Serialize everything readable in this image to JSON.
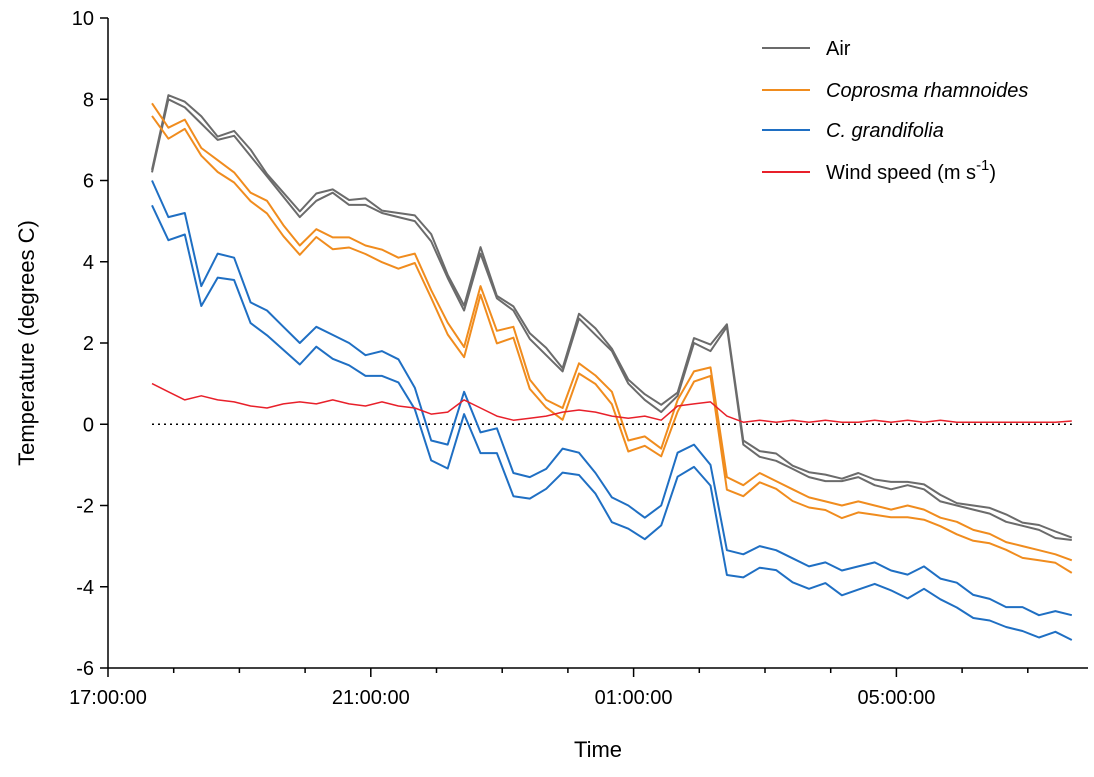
{
  "chart_data": {
    "type": "line",
    "xlabel": "Time",
    "ylabel": "Temperature (degrees C)",
    "ylim": [
      -6,
      10
    ],
    "xlim": [
      "17:00:00",
      "08:00:00"
    ],
    "yticks": [
      "-6",
      "-4",
      "-2",
      "0",
      "2",
      "4",
      "6",
      "8",
      "10"
    ],
    "xticks": [
      "17:00:00",
      "21:00:00",
      "01:00:00",
      "05:00:00"
    ],
    "reference_line": {
      "y": 0,
      "style": "dotted"
    },
    "legend": {
      "placement": "top-right",
      "entries": [
        {
          "key": "air",
          "prefix": "Air",
          "color": "#6b6b6b",
          "italic": false
        },
        {
          "key": "coprosma",
          "prefix": "Coprosma rhamnoides",
          "color": "#f08c1e",
          "italic": true
        },
        {
          "key": "grandifolia",
          "prefix": "C. grandifolia",
          "color": "#1f6fc3",
          "italic": true
        },
        {
          "key": "wind",
          "prefix": "Wind speed (m s",
          "superscript": "-1",
          "suffix": ")",
          "color": "#e8202a",
          "italic": false
        }
      ]
    },
    "series": [
      {
        "name": "Air",
        "color": "#6b6b6b",
        "x_hours": [
          0.0,
          0.25,
          0.5,
          0.75,
          1.0,
          1.25,
          1.5,
          1.75,
          2.0,
          2.25,
          2.5,
          2.75,
          3.0,
          3.25,
          3.5,
          3.75,
          4.0,
          4.25,
          4.5,
          4.75,
          5.0,
          5.25,
          5.5,
          5.75,
          6.0,
          6.25,
          6.5,
          6.75,
          7.0,
          7.25,
          7.5,
          7.75,
          8.0,
          8.25,
          8.5,
          8.75,
          9.0,
          9.25,
          9.5,
          9.75,
          10.0,
          10.25,
          10.5,
          10.75,
          11.0,
          11.25,
          11.5,
          11.75,
          12.0,
          12.25,
          12.5,
          12.75,
          13.0,
          13.25,
          13.5,
          13.75,
          14.0
        ],
        "values": [
          6.2,
          8.0,
          7.8,
          7.4,
          7.0,
          7.1,
          6.6,
          6.1,
          5.6,
          5.1,
          5.5,
          5.7,
          5.4,
          5.4,
          5.2,
          5.1,
          5.0,
          4.5,
          3.6,
          2.8,
          4.2,
          3.1,
          2.8,
          2.1,
          1.7,
          1.3,
          2.6,
          2.2,
          1.8,
          1.0,
          0.6,
          0.3,
          0.7,
          2.0,
          1.8,
          2.4,
          -0.5,
          -0.8,
          -0.9,
          -1.1,
          -1.3,
          -1.4,
          -1.4,
          -1.3,
          -1.5,
          -1.6,
          -1.5,
          -1.6,
          -1.9,
          -2.0,
          -2.1,
          -2.2,
          -2.4,
          -2.5,
          -2.6,
          -2.8,
          -2.85
        ]
      },
      {
        "name": "Coprosma rhamnoides",
        "color": "#f08c1e",
        "x_hours": [
          0.0,
          0.25,
          0.5,
          0.75,
          1.0,
          1.25,
          1.5,
          1.75,
          2.0,
          2.25,
          2.5,
          2.75,
          3.0,
          3.25,
          3.5,
          3.75,
          4.0,
          4.25,
          4.5,
          4.75,
          5.0,
          5.25,
          5.5,
          5.75,
          6.0,
          6.25,
          6.5,
          6.75,
          7.0,
          7.25,
          7.5,
          7.75,
          8.0,
          8.25,
          8.5,
          8.75,
          9.0,
          9.25,
          9.5,
          9.75,
          10.0,
          10.25,
          10.5,
          10.75,
          11.0,
          11.25,
          11.5,
          11.75,
          12.0,
          12.25,
          12.5,
          12.75,
          13.0,
          13.25,
          13.5,
          13.75,
          14.0
        ],
        "values": [
          7.9,
          7.3,
          7.5,
          6.8,
          6.5,
          6.2,
          5.7,
          5.5,
          4.9,
          4.4,
          4.8,
          4.6,
          4.6,
          4.4,
          4.3,
          4.1,
          4.2,
          3.3,
          2.5,
          1.9,
          3.4,
          2.3,
          2.4,
          1.1,
          0.6,
          0.4,
          1.5,
          1.2,
          0.8,
          -0.4,
          -0.3,
          -0.6,
          0.6,
          1.3,
          1.4,
          -1.3,
          -1.5,
          -1.2,
          -1.4,
          -1.6,
          -1.8,
          -1.9,
          -2.0,
          -1.9,
          -2.0,
          -2.1,
          -2.0,
          -2.1,
          -2.3,
          -2.4,
          -2.6,
          -2.7,
          -2.9,
          -3.0,
          -3.1,
          -3.2,
          -3.35
        ]
      },
      {
        "name": "C. grandifolia",
        "color": "#1f6fc3",
        "x_hours": [
          0.0,
          0.25,
          0.5,
          0.75,
          1.0,
          1.25,
          1.5,
          1.75,
          2.0,
          2.25,
          2.5,
          2.75,
          3.0,
          3.25,
          3.5,
          3.75,
          4.0,
          4.25,
          4.5,
          4.75,
          5.0,
          5.25,
          5.5,
          5.75,
          6.0,
          6.25,
          6.5,
          6.75,
          7.0,
          7.25,
          7.5,
          7.75,
          8.0,
          8.25,
          8.5,
          8.75,
          9.0,
          9.25,
          9.5,
          9.75,
          10.0,
          10.25,
          10.5,
          10.75,
          11.0,
          11.25,
          11.5,
          11.75,
          12.0,
          12.25,
          12.5,
          12.75,
          13.0,
          13.25,
          13.5,
          13.75,
          14.0
        ],
        "values": [
          6.0,
          5.1,
          5.2,
          3.4,
          4.2,
          4.1,
          3.0,
          2.8,
          2.4,
          2.0,
          2.4,
          2.2,
          2.0,
          1.7,
          1.8,
          1.6,
          0.9,
          -0.4,
          -0.5,
          0.8,
          -0.2,
          -0.1,
          -1.2,
          -1.3,
          -1.1,
          -0.6,
          -0.7,
          -1.2,
          -1.8,
          -2.0,
          -2.3,
          -2.0,
          -0.7,
          -0.5,
          -1.0,
          -3.1,
          -3.2,
          -3.0,
          -3.1,
          -3.3,
          -3.5,
          -3.4,
          -3.6,
          -3.5,
          -3.4,
          -3.6,
          -3.7,
          -3.5,
          -3.8,
          -3.9,
          -4.2,
          -4.3,
          -4.5,
          -4.5,
          -4.7,
          -4.6,
          -4.7
        ]
      },
      {
        "name": "Wind speed (m s-1)",
        "color": "#e8202a",
        "x_hours": [
          0.0,
          0.25,
          0.5,
          0.75,
          1.0,
          1.25,
          1.5,
          1.75,
          2.0,
          2.25,
          2.5,
          2.75,
          3.0,
          3.25,
          3.5,
          3.75,
          4.0,
          4.25,
          4.5,
          4.75,
          5.0,
          5.25,
          5.5,
          5.75,
          6.0,
          6.25,
          6.5,
          6.75,
          7.0,
          7.25,
          7.5,
          7.75,
          8.0,
          8.25,
          8.5,
          8.75,
          9.0,
          9.25,
          9.5,
          9.75,
          10.0,
          10.25,
          10.5,
          10.75,
          11.0,
          11.25,
          11.5,
          11.75,
          12.0,
          12.25,
          12.5,
          12.75,
          13.0,
          13.25,
          13.5,
          13.75,
          14.0
        ],
        "values": [
          1.0,
          0.8,
          0.6,
          0.7,
          0.6,
          0.55,
          0.45,
          0.4,
          0.5,
          0.55,
          0.5,
          0.6,
          0.5,
          0.45,
          0.55,
          0.45,
          0.4,
          0.25,
          0.3,
          0.6,
          0.4,
          0.2,
          0.1,
          0.15,
          0.2,
          0.3,
          0.35,
          0.3,
          0.2,
          0.15,
          0.2,
          0.1,
          0.45,
          0.5,
          0.55,
          0.2,
          0.05,
          0.1,
          0.05,
          0.1,
          0.05,
          0.1,
          0.05,
          0.05,
          0.1,
          0.05,
          0.1,
          0.05,
          0.1,
          0.05,
          0.05,
          0.05,
          0.05,
          0.05,
          0.05,
          0.05,
          0.08
        ]
      }
    ]
  }
}
